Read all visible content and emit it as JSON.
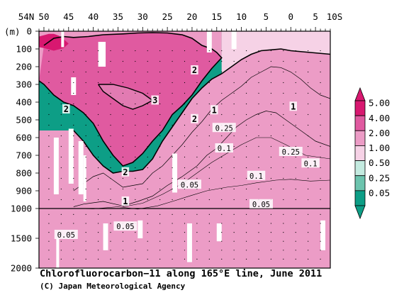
{
  "chart_data": {
    "type": "heatmap",
    "title": "Chlorofluorocarbon−11 along 165°E line, June 2011",
    "credit": "(C) Japan Meteorological Agency",
    "xlabel": "",
    "ylabel": "(m)",
    "x_ticklabels": [
      {
        "lat": 54,
        "label": "54N"
      },
      {
        "lat": 50,
        "label": "50"
      },
      {
        "lat": 45,
        "label": "45"
      },
      {
        "lat": 40,
        "label": "40"
      },
      {
        "lat": 35,
        "label": "35"
      },
      {
        "lat": 30,
        "label": "30"
      },
      {
        "lat": 25,
        "label": "25"
      },
      {
        "lat": 20,
        "label": "20"
      },
      {
        "lat": 15,
        "label": "15"
      },
      {
        "lat": 10,
        "label": "10"
      },
      {
        "lat": 5,
        "label": "5"
      },
      {
        "lat": 0,
        "label": "0"
      },
      {
        "lat": -5,
        "label": "5"
      },
      {
        "lat": -10,
        "label": "10S"
      }
    ],
    "y_ticklabels": [
      "0",
      "100",
      "200",
      "300",
      "400",
      "500",
      "600",
      "700",
      "800",
      "900",
      "1000",
      "1500",
      "2000"
    ],
    "y_breakpoint": 1000,
    "xlim": [
      51,
      -8
    ],
    "ylim": [
      2000,
      0
    ],
    "colorbar": {
      "levels": [
        "5.00",
        "4.00",
        "2.00",
        "1.00",
        "0.50",
        "0.25",
        "0.05"
      ],
      "colors": [
        "#d81870",
        "#e05aa0",
        "#ec9cc6",
        "#f6d2e6",
        "#c4ebe0",
        "#6cc4ae",
        "#0d9e86"
      ]
    },
    "contour_labels": [
      {
        "text": "2",
        "lat": 19.5,
        "depth": 220
      },
      {
        "text": "2",
        "lat": 45.5,
        "depth": 440
      },
      {
        "text": "3",
        "lat": 27.5,
        "depth": 390
      },
      {
        "text": "2",
        "lat": 19.5,
        "depth": 495
      },
      {
        "text": "1",
        "lat": 15.5,
        "depth": 445
      },
      {
        "text": "1",
        "lat": -0.5,
        "depth": 425
      },
      {
        "text": "0.25",
        "lat": 13.5,
        "depth": 545
      },
      {
        "text": "0.1",
        "lat": 13.5,
        "depth": 660
      },
      {
        "text": "0.25",
        "lat": 0,
        "depth": 680
      },
      {
        "text": "0.1",
        "lat": -4,
        "depth": 745
      },
      {
        "text": "2",
        "lat": 33.5,
        "depth": 795
      },
      {
        "text": "0.1",
        "lat": 7,
        "depth": 815
      },
      {
        "text": "0.05",
        "lat": 20.5,
        "depth": 865
      },
      {
        "text": "1",
        "lat": 33.5,
        "depth": 960
      },
      {
        "text": "0.05",
        "lat": 6,
        "depth": 975
      },
      {
        "text": "0.05",
        "lat": 33.5,
        "depth": 1300
      },
      {
        "text": "0.05",
        "lat": 45.5,
        "depth": 1440
      }
    ]
  }
}
